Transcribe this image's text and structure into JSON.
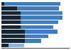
{
  "chart_data": {
    "type": "bar",
    "orientation": "horizontal",
    "stacked": true,
    "categories": [
      null,
      null,
      null,
      null,
      null,
      null,
      null,
      null,
      null,
      null
    ],
    "series": [
      {
        "color": "#162535",
        "values": [
          4,
          22,
          27,
          27,
          27,
          27,
          33,
          33,
          33,
          10
        ]
      },
      {
        "colors": [
          "#3d7ebf",
          "#3d7ebf",
          "#3d7ebf",
          "#3d7ebf",
          "#3d7ebf",
          "#3d7ebf",
          "#3d7ebf",
          "#3d7ebf",
          "#3d7ebf",
          "#8ab4d8"
        ],
        "values": [
          78,
          58,
          58,
          58,
          52,
          45,
          45,
          32,
          22,
          22
        ]
      }
    ],
    "xlim": [
      0,
      95
    ],
    "grid": false,
    "tick_labels": false
  }
}
